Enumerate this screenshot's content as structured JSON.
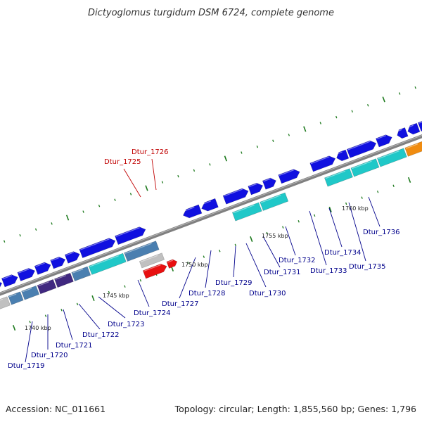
{
  "title": "Dictyoglomus turgidum DSM 6724, complete genome",
  "accession": "Accession: NC_011661",
  "summary": "Topology: circular; Length: 1,855,560 bp; Genes: 1,796",
  "scale_labels": [
    "1740 kbp",
    "1745 kbp",
    "1750 kbp",
    "1755 kbp",
    "1760 kbp"
  ],
  "colors": {
    "backbone": "#808080",
    "gene_blue": "#1010e0",
    "gene_cyan": "#20c8c8",
    "gene_steel": "#4a7fb0",
    "gene_purple": "#402880",
    "gene_grey": "#c0c0c0",
    "gene_orange": "#f08c10",
    "gene_red": "#e81010",
    "tick_green": "#1e7a1e",
    "label_blue": "#00008b",
    "label_red": "#c00000"
  },
  "gene_labels": [
    {
      "id": "Dtur_1719",
      "color": "blue"
    },
    {
      "id": "Dtur_1720",
      "color": "blue"
    },
    {
      "id": "Dtur_1721",
      "color": "blue"
    },
    {
      "id": "Dtur_1722",
      "color": "blue"
    },
    {
      "id": "Dtur_1723",
      "color": "blue"
    },
    {
      "id": "Dtur_1724",
      "color": "blue"
    },
    {
      "id": "Dtur_1725",
      "color": "red"
    },
    {
      "id": "Dtur_1726",
      "color": "red"
    },
    {
      "id": "Dtur_1727",
      "color": "blue"
    },
    {
      "id": "Dtur_1728",
      "color": "blue"
    },
    {
      "id": "Dtur_1729",
      "color": "blue"
    },
    {
      "id": "Dtur_1730",
      "color": "blue"
    },
    {
      "id": "Dtur_1731",
      "color": "blue"
    },
    {
      "id": "Dtur_1732",
      "color": "blue"
    },
    {
      "id": "Dtur_1733",
      "color": "blue"
    },
    {
      "id": "Dtur_1734",
      "color": "blue"
    },
    {
      "id": "Dtur_1735",
      "color": "blue"
    },
    {
      "id": "Dtur_1736",
      "color": "blue"
    }
  ]
}
